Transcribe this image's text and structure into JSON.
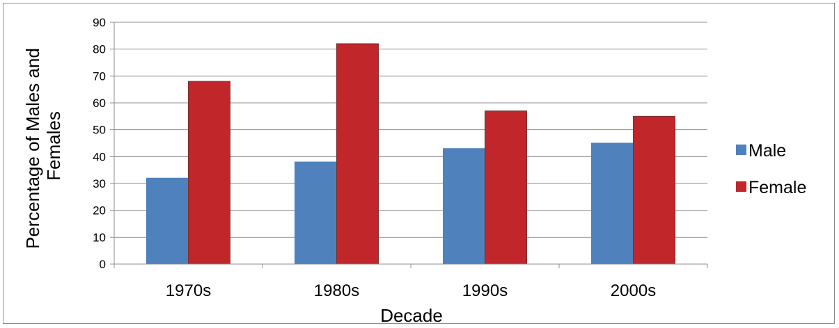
{
  "chart_data": {
    "type": "bar",
    "title": "",
    "xlabel": "Decade",
    "ylabel_lines": [
      "Percentage of Males and",
      "Females"
    ],
    "categories": [
      "1970s",
      "1980s",
      "1990s",
      "2000s"
    ],
    "series": [
      {
        "name": "Male",
        "values": [
          32,
          38,
          43,
          45
        ],
        "color": "#4f81bd"
      },
      {
        "name": "Female",
        "values": [
          68,
          82,
          57,
          55
        ],
        "color": "#c0262a"
      }
    ],
    "ylim": [
      0,
      90
    ],
    "yticks": [
      0,
      10,
      20,
      30,
      40,
      50,
      60,
      70,
      80,
      90
    ],
    "grid": true,
    "legend_position": "right"
  }
}
